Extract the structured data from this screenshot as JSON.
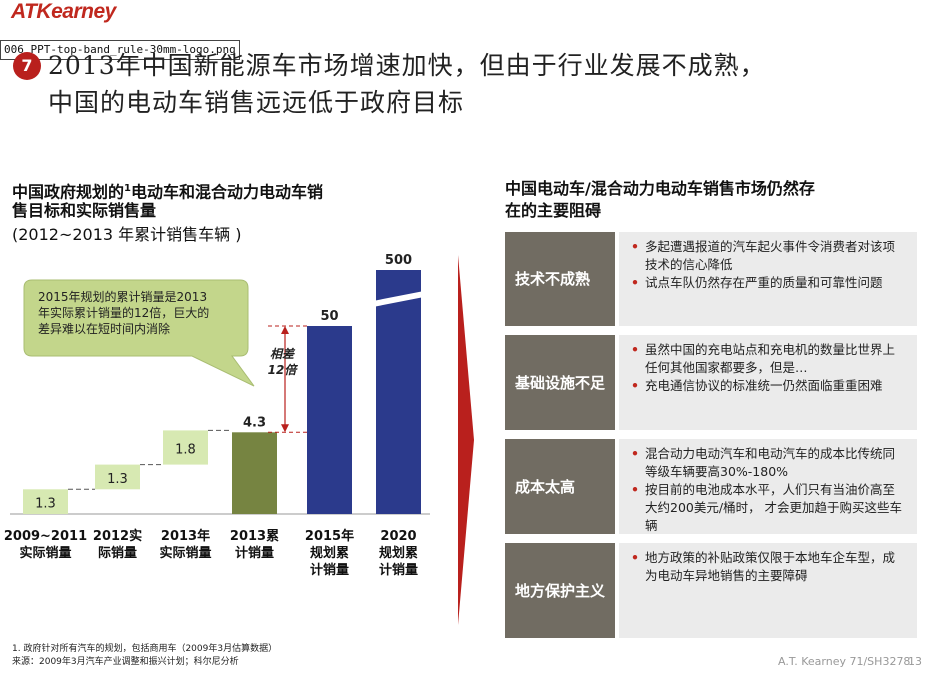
{
  "header": {
    "logo_text": "ATKearney",
    "logo_file_label": "006_PPT-top-band_rule-30mm-logo.png",
    "title_number": "7",
    "title_line1": "2013年中国新能源车市场增速加快，但由于行业发展不成熟，",
    "title_line2": "中国的电动车销售远远低于政府目标"
  },
  "left": {
    "heading_line1": "中国政府规划的",
    "heading_sup": "1",
    "heading_line1b": "电动车和混合动力电动车销",
    "heading_line2": "售目标和实际销售量",
    "heading_line3": "(2012~2013 年累计销售车辆 )",
    "callout": "2015年规划的累计销量是2013年实际累计销量的12倍，巨大的差异难以在短时间内消除",
    "gap_label_1": "相差",
    "gap_label_2": "12倍"
  },
  "chart_data": {
    "type": "bar",
    "categories": [
      "2009~2011实际销量",
      "2012实际销量",
      "2013年实际销量",
      "2013累计销量",
      "2015年规划累计销量",
      "2020规划累计销量"
    ],
    "category_lines": [
      [
        "2009~2011",
        "实际销量"
      ],
      [
        "2012实",
        "际销量"
      ],
      [
        "2013年",
        "实际销量"
      ],
      [
        "2013累",
        "计销量"
      ],
      [
        "2015年",
        "规划累",
        "计销量"
      ],
      [
        "2020",
        "规划累",
        "计销量"
      ]
    ],
    "values": [
      1.3,
      1.3,
      1.8,
      4.3,
      50,
      500
    ],
    "value_labels": [
      "1.3",
      "1.3",
      "1.8",
      "4.3",
      "50",
      "500"
    ],
    "bar_kinds": [
      "waterfall",
      "waterfall",
      "waterfall",
      "total",
      "target",
      "target"
    ],
    "colors": {
      "waterfall": "#d7e9b2",
      "total": "#768441",
      "target": "#2b3a8c",
      "accent": "#b9201d"
    },
    "broken_axis": true
  },
  "right": {
    "heading_line1": "中国电动车/混合动力电动车销售市场仍然存",
    "heading_line2": "在的主要阻碍",
    "rows": [
      {
        "label": "技术不成熟",
        "bullets": [
          "多起遭遇报道的汽车起火事件令消费者对该项技术的信心降低",
          "试点车队仍然存在严重的质量和可靠性问题"
        ]
      },
      {
        "label": "基础设施不足",
        "bullets": [
          "虽然中国的充电站点和充电机的数量比世界上任何其他国家都要多，但是…",
          "充电通信协议的标准统一仍然面临重重困难"
        ]
      },
      {
        "label": "成本太高",
        "bullets": [
          "混合动力电动汽车和电动汽车的成本比传统同等级车辆要高30%-180%",
          "按目前的电池成本水平，人们只有当油价高至大约200美元/桶时， 才会更加趋于购买这些车辆"
        ]
      },
      {
        "label": "地方保护主义",
        "bullets": [
          "地方政策的补贴政策仅限于本地车企车型，成为电动车异地销售的主要障碍"
        ]
      }
    ]
  },
  "footer": {
    "note1": "1. 政府针对所有汽车的规划，包括商用车（2009年3月估算数据）",
    "note2": "来源：2009年3月汽车产业调整和振兴计划；科尔尼分析",
    "doc_ref": "A.T. Kearney 71/SH3278",
    "page_number": "13"
  }
}
